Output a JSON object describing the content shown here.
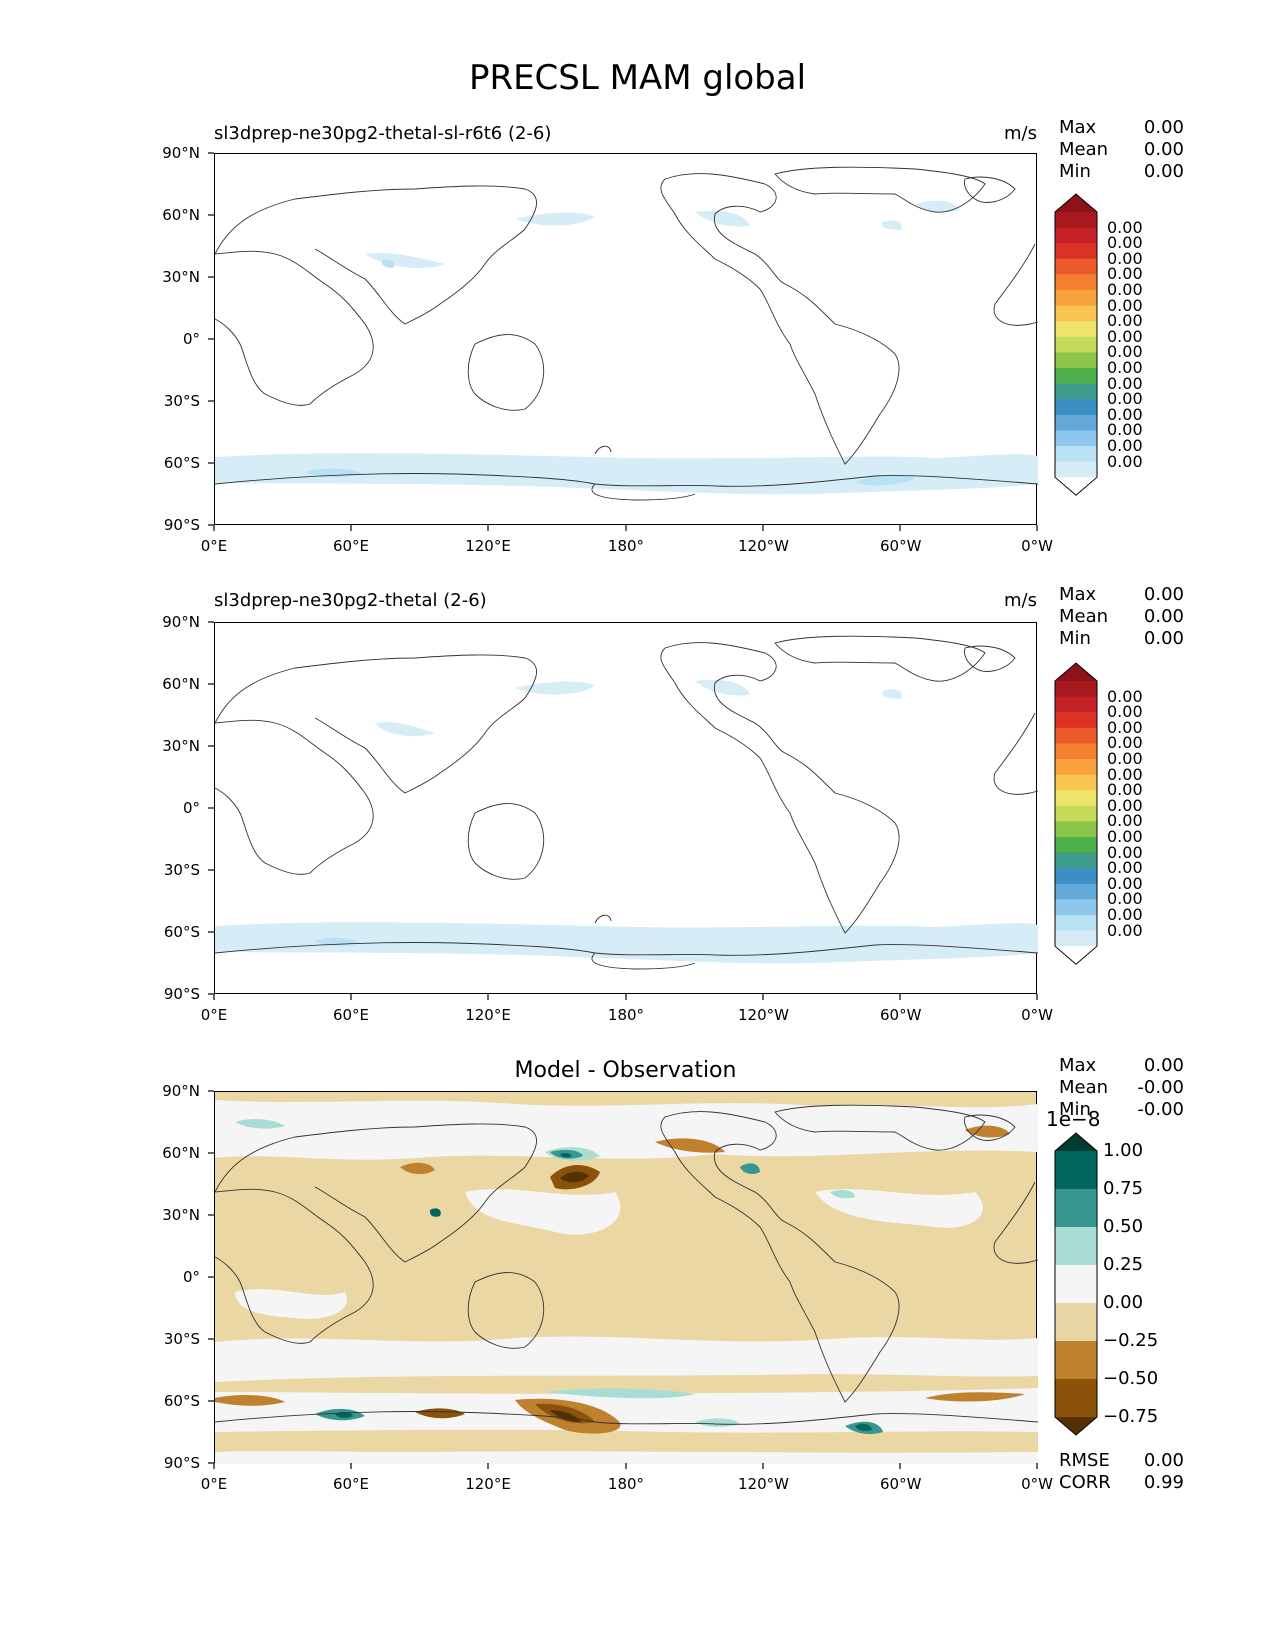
{
  "figure_title": "PRECSL MAM global",
  "panels": [
    {
      "title_left": "sl3dprep-ne30pg2-thetal-sl-r6t6 (2-6)",
      "title_center": "",
      "units": "m/s",
      "stats": [
        {
          "label": "Max",
          "value": "0.00"
        },
        {
          "label": "Mean",
          "value": "0.00"
        },
        {
          "label": "Min",
          "value": "0.00"
        }
      ],
      "colorbar": {
        "colors": [
          "#ffffff",
          "#d6edf8",
          "#b9e1f4",
          "#8ec7ee",
          "#62a9da",
          "#3b8fc4",
          "#3e9a8a",
          "#4db04a",
          "#8dc44a",
          "#c6da5a",
          "#eee46a",
          "#f9c74f",
          "#f7a23c",
          "#f57f2f",
          "#ec5a2c",
          "#dc3226",
          "#c42126",
          "#a8181f",
          "#8c1419"
        ],
        "labels": [
          "0.00",
          "0.00",
          "0.00",
          "0.00",
          "0.00",
          "0.00",
          "0.00",
          "0.00",
          "0.00",
          "0.00",
          "0.00",
          "0.00",
          "0.00",
          "0.00",
          "0.00",
          "0.00"
        ],
        "exponent": ""
      }
    },
    {
      "title_left": "sl3dprep-ne30pg2-thetal (2-6)",
      "title_center": "",
      "units": "m/s",
      "stats": [
        {
          "label": "Max",
          "value": "0.00"
        },
        {
          "label": "Mean",
          "value": "0.00"
        },
        {
          "label": "Min",
          "value": "0.00"
        }
      ],
      "colorbar": {
        "colors": [
          "#ffffff",
          "#d6edf8",
          "#b9e1f4",
          "#8ec7ee",
          "#62a9da",
          "#3b8fc4",
          "#3e9a8a",
          "#4db04a",
          "#8dc44a",
          "#c6da5a",
          "#eee46a",
          "#f9c74f",
          "#f7a23c",
          "#f57f2f",
          "#ec5a2c",
          "#dc3226",
          "#c42126",
          "#a8181f",
          "#8c1419"
        ],
        "labels": [
          "0.00",
          "0.00",
          "0.00",
          "0.00",
          "0.00",
          "0.00",
          "0.00",
          "0.00",
          "0.00",
          "0.00",
          "0.00",
          "0.00",
          "0.00",
          "0.00",
          "0.00",
          "0.00"
        ],
        "exponent": ""
      }
    },
    {
      "title_left": "",
      "title_center": "Model - Observation",
      "units": "",
      "stats": [
        {
          "label": "Max",
          "value": "0.00"
        },
        {
          "label": "Mean",
          "value": "-0.00"
        },
        {
          "label": "Min",
          "value": "-0.00"
        }
      ],
      "colorbar": {
        "colors": [
          "#543005",
          "#8c510a",
          "#bf812d",
          "#e9d6a5",
          "#f5f5f5",
          "#a8ddd3",
          "#35978f",
          "#01665e",
          "#003c30"
        ],
        "labels": [
          "1.00",
          "0.75",
          "0.50",
          "0.25",
          "0.00",
          "−0.25",
          "−0.50",
          "−0.75"
        ],
        "exponent": "1e−8"
      },
      "metrics": [
        {
          "label": "RMSE",
          "value": "0.00"
        },
        {
          "label": "CORR",
          "value": "0.99"
        }
      ]
    }
  ],
  "lat_ticks": [
    "90°N",
    "60°N",
    "30°N",
    "0°",
    "30°S",
    "60°S",
    "90°S"
  ],
  "lon_ticks": [
    "0°E",
    "60°E",
    "120°E",
    "180°",
    "120°W",
    "60°W",
    "0°W"
  ]
}
